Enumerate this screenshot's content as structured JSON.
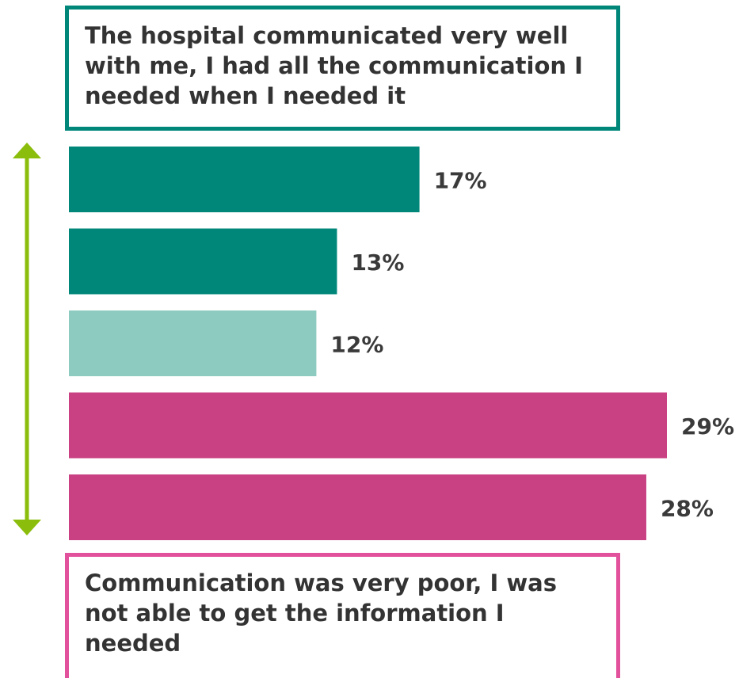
{
  "top_label": "The hospital communicated very well with me, I had all the communication I needed when I needed it",
  "bottom_label": "Communication was very poor, I was not able to get the information I needed",
  "colors": {
    "positive_dark": "#00877a",
    "positive_light": "#8dcbc0",
    "negative": "#c94183",
    "arrow": "#8bbd0c",
    "top_border": "#00877a",
    "bottom_border": "#e2519c",
    "value_label": "#3a3a3a"
  },
  "chart_data": {
    "type": "bar",
    "orientation": "horizontal",
    "unit": "%",
    "values": [
      17,
      13,
      12,
      29,
      28
    ],
    "value_labels": [
      "17%",
      "13%",
      "12%",
      "29%",
      "28%"
    ],
    "bar_colors": [
      "#00877a",
      "#00877a",
      "#8dcbc0",
      "#c94183",
      "#c94183"
    ],
    "xlim": [
      0,
      29
    ],
    "grid": false,
    "legend": "none"
  }
}
